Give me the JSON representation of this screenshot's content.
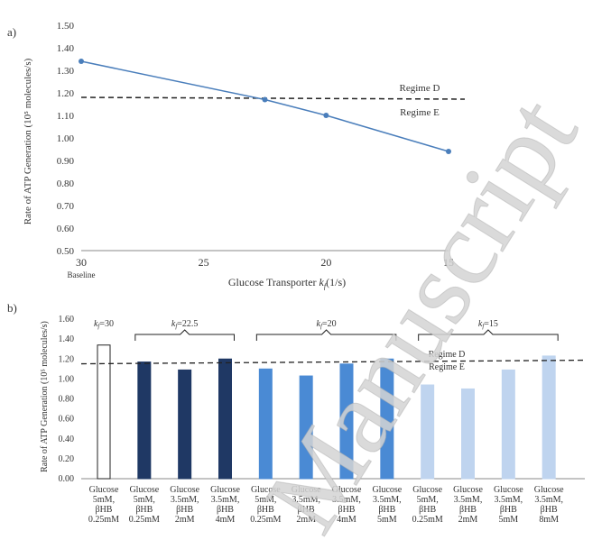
{
  "chart_data": [
    {
      "panel_label": "a)",
      "type": "line",
      "xlabel": "Glucose Transporter",
      "xlabel_kf": "k",
      "xlabel_kf_sub": "f",
      "xlabel_unit": "(1/s)",
      "x_reversed": true,
      "xlim": [
        30,
        15
      ],
      "xticks": [
        "30",
        "25",
        "20",
        "15"
      ],
      "xtick_values": [
        30,
        25,
        20,
        15
      ],
      "x_baseline_label": "Baseline",
      "ylabel": "Rate of ATP Generation (10⁵ molecules/s)",
      "ylim": [
        0.5,
        1.5
      ],
      "yticks": [
        "0.50",
        "0.60",
        "0.70",
        "0.80",
        "0.90",
        "1.00",
        "1.10",
        "1.20",
        "1.30",
        "1.40",
        "1.50"
      ],
      "series": [
        {
          "x": [
            30,
            22.5,
            20,
            15
          ],
          "values": [
            1.34,
            1.17,
            1.1,
            0.94
          ],
          "color": "#4a7ebb"
        }
      ],
      "threshold": {
        "value": 1.18,
        "label_above": "Regime D",
        "label_below": "Regime E"
      }
    },
    {
      "panel_label": "b)",
      "type": "bar",
      "ylabel": "Rate of ATP Generation (10⁵ molecules/s)",
      "ylim": [
        0,
        1.6
      ],
      "yticks": [
        "0.00",
        "0.20",
        "0.40",
        "0.60",
        "0.80",
        "1.00",
        "1.20",
        "1.40",
        "1.60"
      ],
      "categories": [
        [
          "Glucose",
          "5mM,",
          "βHB",
          "0.25mM"
        ],
        [
          "Glucose",
          "5mM,",
          "βHB",
          "0.25mM"
        ],
        [
          "Glucose",
          "3.5mM,",
          "βHB",
          "2mM"
        ],
        [
          "Glucose",
          "3.5mM,",
          "βHB",
          "4mM"
        ],
        [
          "Glucose",
          "5mM,",
          "βHB",
          "0.25mM"
        ],
        [
          "Glucose",
          "3.5mM,",
          "βHB",
          "2mM"
        ],
        [
          "Glucose",
          "3.5mM,",
          "βHB",
          "4mM"
        ],
        [
          "Glucose",
          "3.5mM,",
          "βHB",
          "5mM"
        ],
        [
          "Glucose",
          "5mM,",
          "βHB",
          "0.25mM"
        ],
        [
          "Glucose",
          "3.5mM,",
          "βHB",
          "2mM"
        ],
        [
          "Glucose",
          "3.5mM,",
          "βHB",
          "5mM"
        ],
        [
          "Glucose",
          "3.5mM,",
          "βHB",
          "8mM"
        ]
      ],
      "values": [
        1.34,
        1.17,
        1.09,
        1.2,
        1.1,
        1.03,
        1.15,
        1.2,
        0.94,
        0.9,
        1.09,
        1.23
      ],
      "groups": [
        {
          "k": "k",
          "sub": "f",
          "value": "=30",
          "bars": [
            0,
            0
          ],
          "bracket": false,
          "fill": "#ffffff",
          "stroke": "#222222"
        },
        {
          "k": "k",
          "sub": "f",
          "value": "=22.5",
          "bars": [
            1,
            3
          ],
          "bracket": true,
          "fill": "#1f3864",
          "stroke": "#1f3864"
        },
        {
          "k": "k",
          "sub": "f",
          "value": "=20",
          "bars": [
            4,
            7
          ],
          "bracket": true,
          "fill": "#4a8ad4",
          "stroke": "#4a8ad4"
        },
        {
          "k": "k",
          "sub": "f",
          "value": "=15",
          "bars": [
            8,
            11
          ],
          "bracket": true,
          "fill": "#bfd4ef",
          "stroke": "#bfd4ef"
        }
      ],
      "threshold": {
        "value": 1.17,
        "label_above": "Regime D",
        "label_below": "Regime E"
      }
    }
  ],
  "watermark": "Manuscript"
}
